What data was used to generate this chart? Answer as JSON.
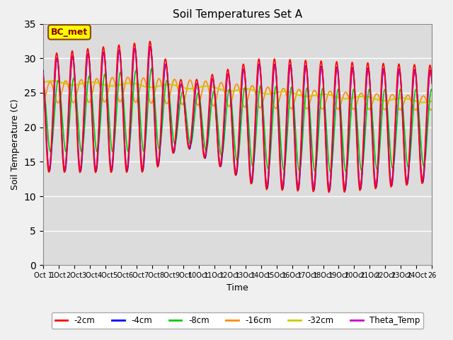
{
  "title": "Soil Temperatures Set A",
  "xlabel": "Time",
  "ylabel": "Soil Temperature (C)",
  "xlim": [
    0,
    25
  ],
  "ylim": [
    0,
    35
  ],
  "yticks": [
    0,
    5,
    10,
    15,
    20,
    25,
    30,
    35
  ],
  "annotation_text": "BC_met",
  "annotation_box_color": "#FFFF00",
  "annotation_box_edge": "#8B4513",
  "annotation_text_color": "#8B0000",
  "series": [
    {
      "label": "-2cm",
      "color": "#FF0000",
      "linewidth": 1.2
    },
    {
      "label": "-4cm",
      "color": "#0000FF",
      "linewidth": 1.2
    },
    {
      "label": "-8cm",
      "color": "#00CC00",
      "linewidth": 1.2
    },
    {
      "label": "-16cm",
      "color": "#FF8C00",
      "linewidth": 1.2
    },
    {
      "label": "-32cm",
      "color": "#CCCC00",
      "linewidth": 1.5
    },
    {
      "label": "Theta_Temp",
      "color": "#CC00CC",
      "linewidth": 1.2
    }
  ],
  "background_color": "#DCDCDC",
  "plot_bg_color": "#F0F0F0",
  "grid_color": "#FFFFFF",
  "legend_ncol": 6
}
